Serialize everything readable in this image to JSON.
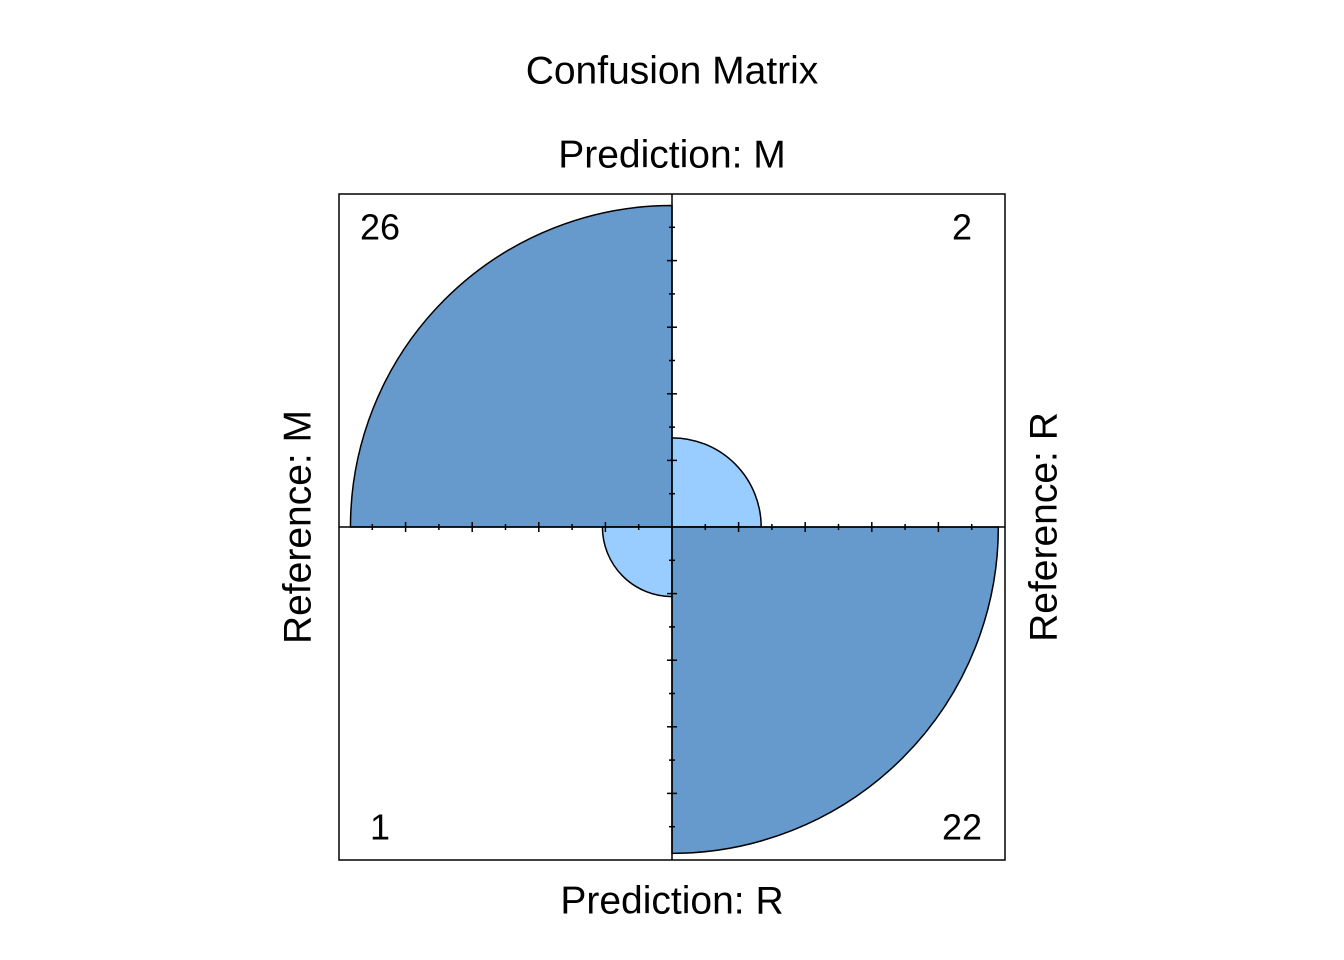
{
  "chart_data": {
    "type": "fourfold",
    "title": "Confusion Matrix",
    "top_label": "Prediction: M",
    "bottom_label": "Prediction: R",
    "left_label": "Reference: M",
    "right_label": "Reference: R",
    "values": [
      26,
      2,
      1,
      22
    ],
    "colors": [
      "#6699CC",
      "#99CCFF"
    ]
  }
}
